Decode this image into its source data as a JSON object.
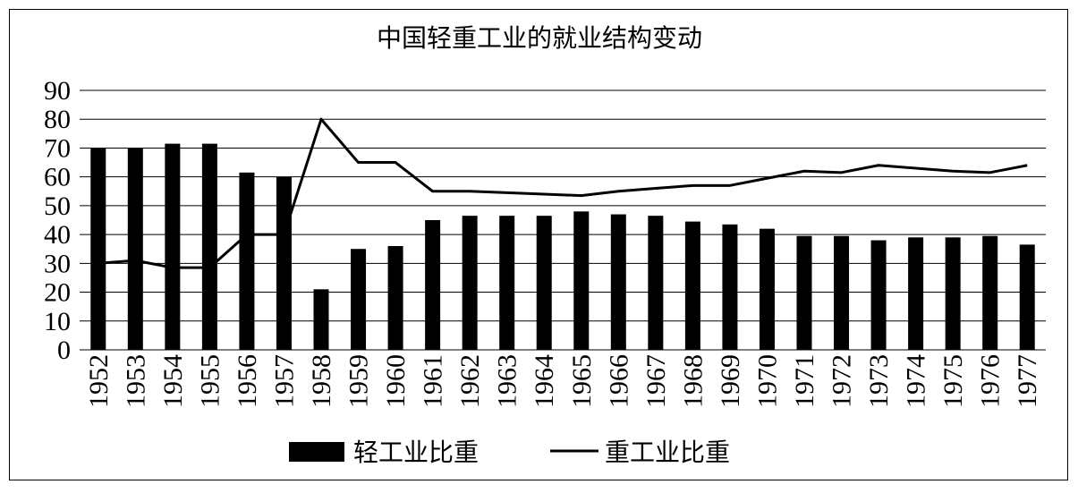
{
  "chart_data": {
    "type": "bar",
    "title": "中国轻重工业的就业结构变动",
    "categories": [
      "1952",
      "1953",
      "1954",
      "1955",
      "1956",
      "1957",
      "1958",
      "1959",
      "1960",
      "1961",
      "1962",
      "1963",
      "1964",
      "1965",
      "1966",
      "1967",
      "1968",
      "1969",
      "1970",
      "1971",
      "1972",
      "1973",
      "1974",
      "1975",
      "1976",
      "1977"
    ],
    "series": [
      {
        "name": "轻工业比重",
        "kind": "bar",
        "color": "#000000",
        "values": [
          70,
          70,
          71.5,
          71.5,
          61.5,
          60,
          21,
          35,
          36,
          45,
          46.5,
          46.5,
          46.5,
          48,
          47,
          46.5,
          44.5,
          43.5,
          42,
          39.5,
          39.5,
          38,
          39,
          39,
          39.5,
          36.5
        ]
      },
      {
        "name": "重工业比重",
        "kind": "line",
        "color": "#000000",
        "values": [
          30,
          31,
          28.5,
          28.5,
          40,
          40,
          80,
          65,
          65,
          55,
          55,
          54.5,
          54,
          53.5,
          55,
          56,
          57,
          57,
          59.5,
          62,
          61.5,
          64,
          63,
          62,
          61.5,
          64
        ]
      }
    ],
    "xlabel": "",
    "ylabel": "",
    "ylim": [
      0,
      90
    ],
    "yticks": [
      "0",
      "10",
      "20",
      "30",
      "40",
      "50",
      "60",
      "70",
      "80",
      "90"
    ],
    "grid": "horizontal",
    "legend": "bottom-center"
  }
}
